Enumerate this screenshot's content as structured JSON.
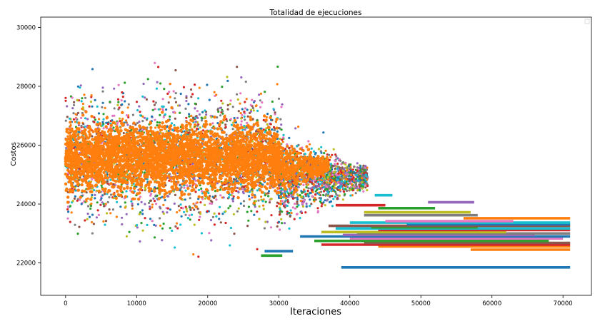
{
  "chart_data": {
    "type": "scatter",
    "title": "Totalidad de ejecuciones",
    "xlabel": "Iteraciones",
    "ylabel": "Costos",
    "xlim": [
      -3500,
      74000
    ],
    "ylim": [
      20900,
      30350
    ],
    "x_ticks": [
      0,
      10000,
      20000,
      30000,
      40000,
      50000,
      60000,
      70000
    ],
    "x_tick_labels": [
      "0",
      "10000",
      "20000",
      "30000",
      "40000",
      "50000",
      "60000",
      "70000"
    ],
    "y_ticks": [
      22000,
      24000,
      26000,
      28000,
      30000
    ],
    "y_tick_labels": [
      "22000",
      "24000",
      "26000",
      "28000",
      "30000"
    ],
    "legend": {
      "placement": "top-right",
      "entries": []
    },
    "grid": false,
    "palette": [
      "#1f77b4",
      "#ff7f0e",
      "#2ca02c",
      "#d62728",
      "#9467bd",
      "#8c564b",
      "#e377c2",
      "#7f7f7f",
      "#bcbd22",
      "#17becf"
    ],
    "dense_region": {
      "x_range": [
        0,
        30000
      ],
      "y_range": [
        22300,
        29000
      ],
      "approx_center_y": 25600
    },
    "series_tail_levels": [
      {
        "color": "#1f77b4",
        "x_start": 38800,
        "x_end": 71000,
        "y": 21850
      },
      {
        "color": "#ff7f0e",
        "x_start": 57000,
        "x_end": 71000,
        "y": 22450
      },
      {
        "color": "#ff7f0e",
        "x_start": 44000,
        "x_end": 71000,
        "y": 22560
      },
      {
        "color": "#d62728",
        "x_start": 36000,
        "x_end": 71000,
        "y": 22620
      },
      {
        "color": "#8c564b",
        "x_start": 42000,
        "x_end": 71000,
        "y": 22680
      },
      {
        "color": "#2ca02c",
        "x_start": 35000,
        "x_end": 68000,
        "y": 22750
      },
      {
        "color": "#e377c2",
        "x_start": 40000,
        "x_end": 70000,
        "y": 22830
      },
      {
        "color": "#1f77b4",
        "x_start": 33000,
        "x_end": 71000,
        "y": 22900
      },
      {
        "color": "#9467bd",
        "x_start": 39000,
        "x_end": 66000,
        "y": 22950
      },
      {
        "color": "#7f7f7f",
        "x_start": 41000,
        "x_end": 71000,
        "y": 23000
      },
      {
        "color": "#bcbd22",
        "x_start": 36000,
        "x_end": 62000,
        "y": 23050
      },
      {
        "color": "#d62728",
        "x_start": 44000,
        "x_end": 71000,
        "y": 23120
      },
      {
        "color": "#17becf",
        "x_start": 38000,
        "x_end": 71000,
        "y": 23170
      },
      {
        "color": "#2ca02c",
        "x_start": 43000,
        "x_end": 58000,
        "y": 23210
      },
      {
        "color": "#8c564b",
        "x_start": 37000,
        "x_end": 71000,
        "y": 23260
      },
      {
        "color": "#1f77b4",
        "x_start": 48000,
        "x_end": 71000,
        "y": 23310
      },
      {
        "color": "#17becf",
        "x_start": 40000,
        "x_end": 71000,
        "y": 23370
      },
      {
        "color": "#e377c2",
        "x_start": 45000,
        "x_end": 63000,
        "y": 23420
      },
      {
        "color": "#ff7f0e",
        "x_start": 56000,
        "x_end": 71000,
        "y": 23520
      },
      {
        "color": "#7f7f7f",
        "x_start": 42000,
        "x_end": 58000,
        "y": 23620
      },
      {
        "color": "#bcbd22",
        "x_start": 42000,
        "x_end": 57000,
        "y": 23720
      },
      {
        "color": "#9467bd",
        "x_start": 51000,
        "x_end": 57500,
        "y": 24060
      },
      {
        "color": "#2ca02c",
        "x_start": 44000,
        "x_end": 52000,
        "y": 23860
      },
      {
        "color": "#17becf",
        "x_start": 43500,
        "x_end": 46000,
        "y": 24300
      },
      {
        "color": "#d62728",
        "x_start": 38000,
        "x_end": 45000,
        "y": 23960
      },
      {
        "color": "#1f77b4",
        "x_start": 28000,
        "x_end": 32000,
        "y": 22400
      },
      {
        "color": "#2ca02c",
        "x_start": 27500,
        "x_end": 30500,
        "y": 22250
      }
    ]
  }
}
